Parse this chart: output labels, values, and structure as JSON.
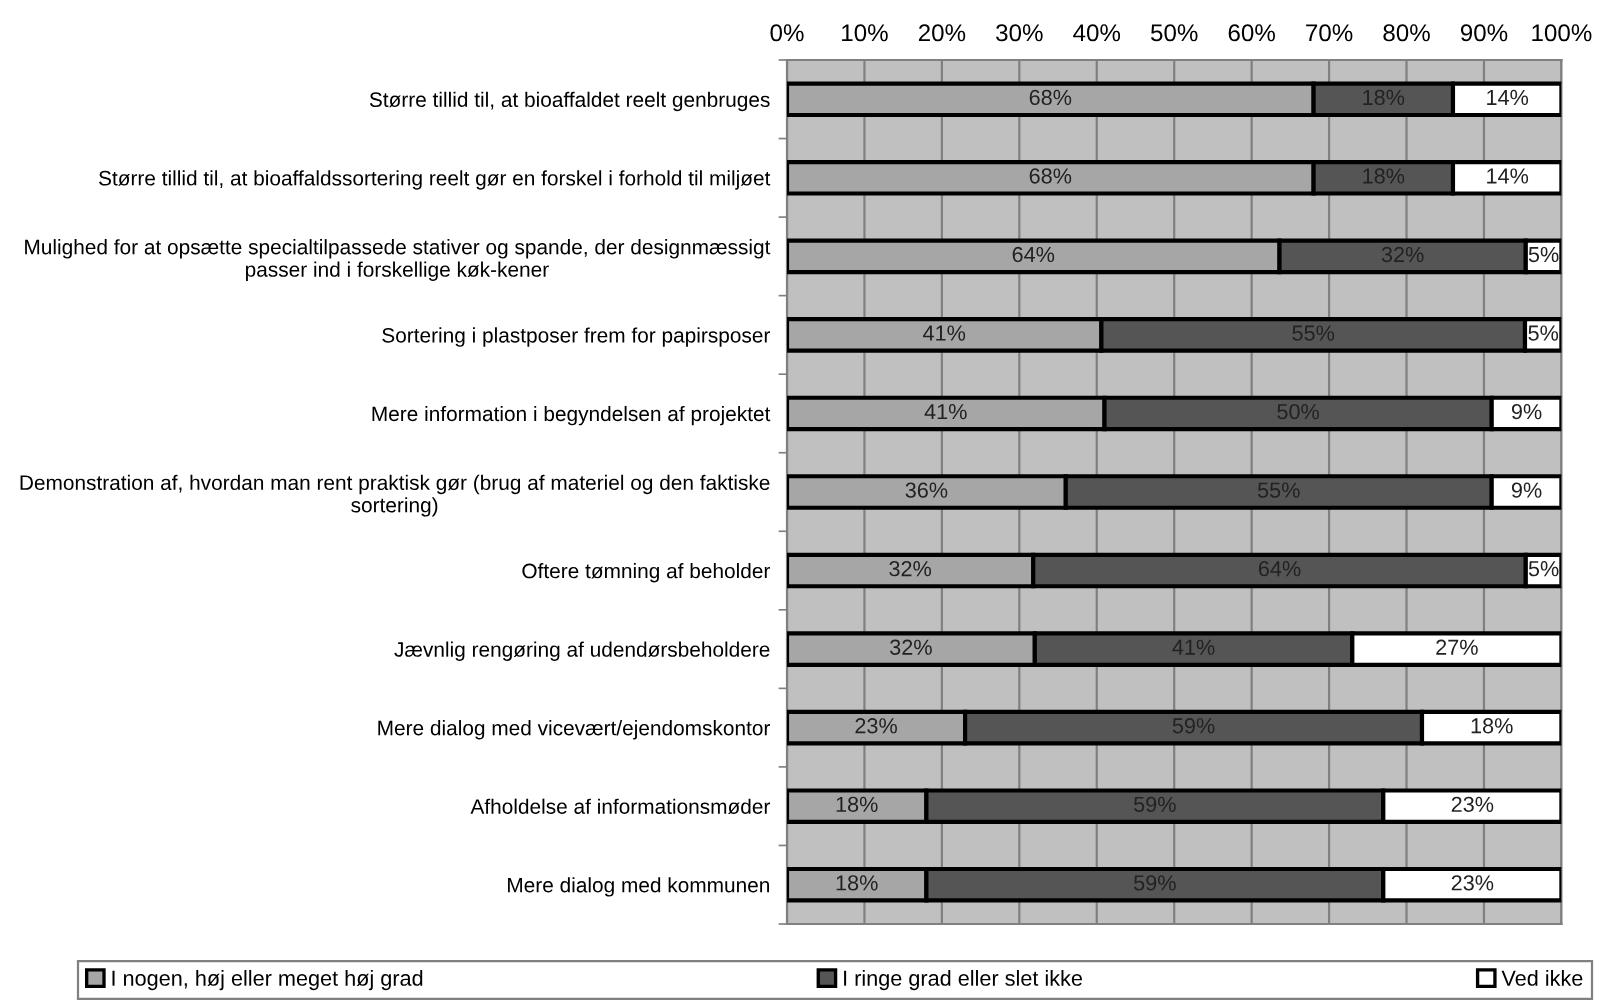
{
  "chart_data": {
    "type": "bar",
    "orientation": "horizontal",
    "stacked": true,
    "categories": [
      "Større tillid til, at bioaffaldet reelt genbruges",
      "Større tillid til, at bioaffaldssortering reelt gør en forskel i forhold til miljøet",
      "Mulighed for at opsætte specialtilpassede stativer og spande, der designmæssigt passer ind i forskellige køk-kener",
      "Sortering i plastposer frem for papirsposer",
      "Mere information i begyndelsen af projektet",
      "Demonstration af, hvordan man rent praktisk gør (brug af materiel og den faktiske sortering)",
      "Oftere tømning af beholder",
      "Jævnlig rengøring af udendørsbeholdere",
      "Mere dialog med vicevært/ejendomskontor",
      "Afholdelse af informationsmøder",
      "Mere dialog med kommunen"
    ],
    "series": [
      {
        "name": "I nogen, høj eller meget høj grad",
        "color": "#a6a6a6",
        "values": [
          68,
          68,
          63.6,
          40.6,
          41,
          36,
          31.8,
          32,
          23,
          18,
          18
        ],
        "value_labels": [
          "68%",
          "68%",
          "64%",
          "41%",
          "41%",
          "36%",
          "32%",
          "32%",
          "23%",
          "18%",
          "18%"
        ]
      },
      {
        "name": "I ringe grad eller slet ikke",
        "color": "#555555",
        "values": [
          18,
          18,
          31.8,
          54.7,
          50,
          55,
          63.6,
          41,
          59,
          59,
          59
        ],
        "value_labels": [
          "18%",
          "18%",
          "32%",
          "55%",
          "50%",
          "55%",
          "64%",
          "41%",
          "59%",
          "59%",
          "59%"
        ]
      },
      {
        "name": "Ved ikke",
        "color": "#ffffff",
        "values": [
          14,
          14,
          4.6,
          4.7,
          9,
          9,
          4.6,
          27,
          18,
          23,
          23
        ],
        "value_labels": [
          "14%",
          "14%",
          "5%",
          "5%",
          "9%",
          "9%",
          "5%",
          "27%",
          "18%",
          "23%",
          "23%"
        ]
      }
    ],
    "xlim": [
      0,
      100
    ],
    "xticks": [
      {
        "value": 0,
        "label": "0%"
      },
      {
        "value": 10,
        "label": "10%"
      },
      {
        "value": 20,
        "label": "20%"
      },
      {
        "value": 30,
        "label": "30%"
      },
      {
        "value": 40,
        "label": "40%"
      },
      {
        "value": 50,
        "label": "50%"
      },
      {
        "value": 60,
        "label": "60%"
      },
      {
        "value": 70,
        "label": "70%"
      },
      {
        "value": 80,
        "label": "80%"
      },
      {
        "value": 90,
        "label": "90%"
      },
      {
        "value": 100,
        "label": "100%"
      }
    ],
    "grid": "x",
    "legend": "bottom"
  }
}
